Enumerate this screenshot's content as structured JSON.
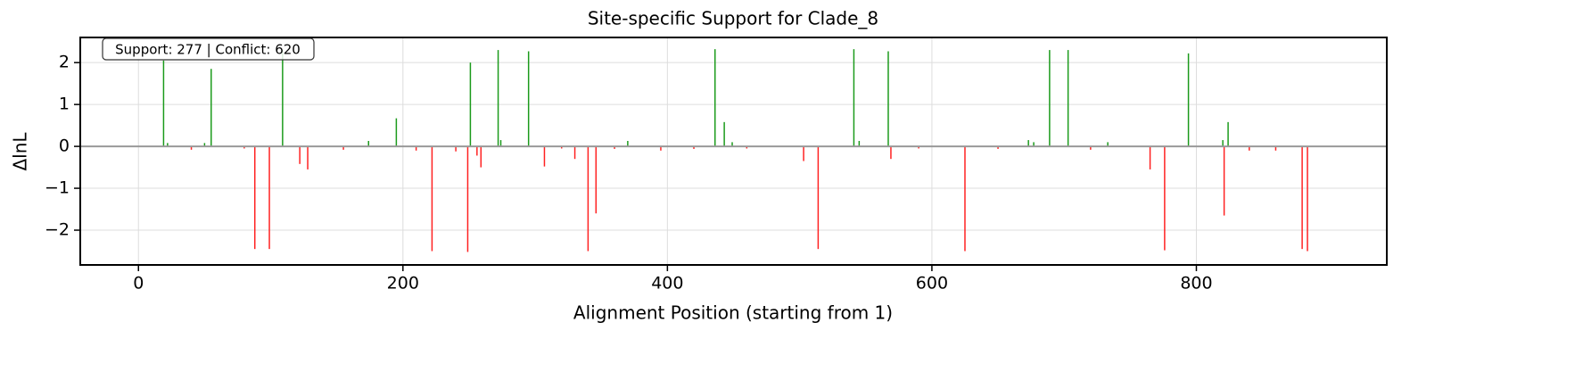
{
  "chart_data": {
    "type": "bar",
    "title": "Site-specific Support for Clade_8",
    "xlabel": "Alignment Position (starting from 1)",
    "ylabel": "ΔlnL",
    "annotation": "Support: 277 | Conflict: 620",
    "x": [
      19,
      22,
      40,
      50,
      55,
      80,
      88,
      99,
      109,
      122,
      128,
      155,
      174,
      195,
      210,
      222,
      240,
      249,
      251,
      256,
      259,
      272,
      274,
      295,
      307,
      320,
      330,
      340,
      346,
      360,
      370,
      395,
      420,
      436,
      443,
      449,
      460,
      503,
      514,
      541,
      545,
      567,
      569,
      590,
      625,
      650,
      673,
      677,
      689,
      703,
      720,
      733,
      765,
      776,
      794,
      820,
      821,
      824,
      840,
      860,
      880,
      884
    ],
    "values": [
      2.05,
      0.08,
      -0.08,
      0.08,
      1.85,
      -0.05,
      -2.45,
      -2.45,
      2.3,
      -0.42,
      -0.55,
      -0.08,
      0.13,
      0.67,
      -0.1,
      -2.5,
      -0.12,
      -2.52,
      2.0,
      -0.22,
      -0.5,
      2.3,
      0.15,
      2.27,
      -0.48,
      -0.05,
      -0.3,
      -2.5,
      -1.6,
      -0.06,
      0.13,
      -0.1,
      -0.06,
      2.32,
      0.58,
      0.1,
      -0.05,
      -0.35,
      -2.45,
      2.32,
      0.13,
      2.27,
      -0.3,
      -0.05,
      -2.5,
      -0.06,
      0.15,
      0.1,
      2.3,
      2.3,
      -0.08,
      0.1,
      -0.55,
      -2.48,
      2.22,
      0.15,
      -1.65,
      0.58,
      -0.1,
      -0.1,
      -2.45,
      -2.5
    ],
    "positive_color": "#1a9a1a",
    "negative_color": "#ff2020",
    "zero_line_color": "#999999",
    "xlim": [
      -44,
      944
    ],
    "ylim": [
      -2.83,
      2.6
    ],
    "xticks": [
      0,
      200,
      400,
      600,
      800
    ],
    "yticks": [
      {
        "value": -2,
        "label": "−2"
      },
      {
        "value": -1,
        "label": "−1"
      },
      0,
      1,
      2
    ],
    "grid": true
  }
}
